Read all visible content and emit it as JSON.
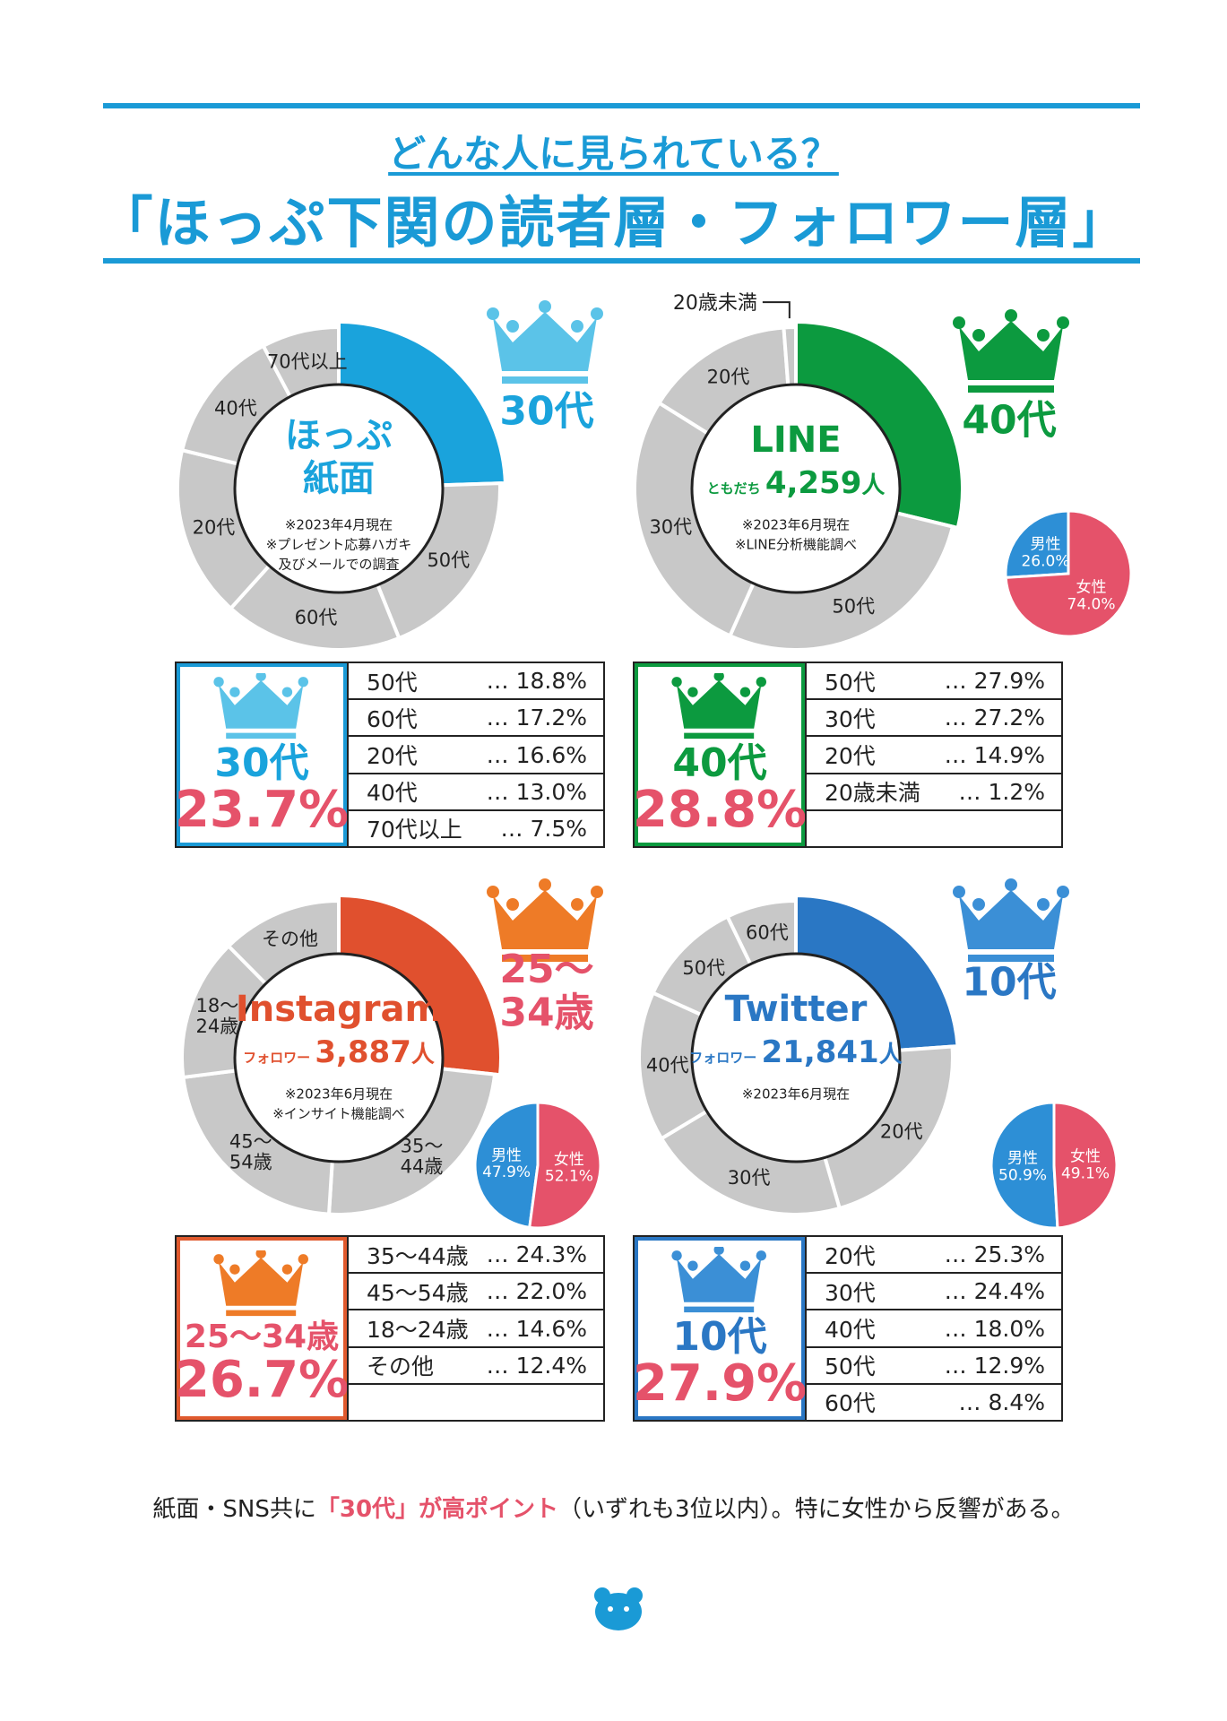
{
  "header": {
    "subtitle": "どんな人に見られている？",
    "title": "「ほっぷ下関の読者層・フォロワー層」"
  },
  "colors": {
    "accent": "#1a9ad6",
    "grey": "#c8c8c8",
    "female": "#e5526a",
    "male": "#2d8fd6",
    "highlight_red": "#e5526a"
  },
  "panels": [
    {
      "id": "paper",
      "center_title": "ほっぷ",
      "center_title2": "紙面",
      "center_prefix": "",
      "center_number": "",
      "center_unit": "",
      "notes": [
        "※2023年4月現在",
        "※プレゼント応募ハガキ",
        "及びメールでの調査"
      ],
      "crown_label": "30代",
      "crown_color": "#5bc3e8",
      "table_border": "#1a9ad6",
      "rank_label": "30代",
      "rank_pct": "23.7%",
      "table_rows": [
        {
          "label": "50代",
          "value": "… 18.8%"
        },
        {
          "label": "60代",
          "value": "… 17.2%"
        },
        {
          "label": "20代",
          "value": "… 16.6%"
        },
        {
          "label": "40代",
          "value": "… 13.0%"
        },
        {
          "label": "70代以上",
          "value": "… 7.5%"
        }
      ]
    },
    {
      "id": "line",
      "center_title": "LINE",
      "center_title2": "",
      "center_prefix": "ともだち",
      "center_number": "4,259",
      "center_unit": "人",
      "notes": [
        "※2023年6月現在",
        "※LINE分析機能調べ"
      ],
      "crown_label": "40代",
      "crown_color": "#0c9a3f",
      "table_border": "#0c9a3f",
      "rank_label": "40代",
      "rank_pct": "28.8%",
      "table_rows": [
        {
          "label": "50代",
          "value": "… 27.9%"
        },
        {
          "label": "30代",
          "value": "… 27.2%"
        },
        {
          "label": "20代",
          "value": "… 14.9%"
        },
        {
          "label": "20歳未満",
          "value": "… 1.2%"
        },
        {
          "label": "",
          "value": ""
        }
      ]
    },
    {
      "id": "instagram",
      "center_title": "Instagram",
      "center_title2": "",
      "center_prefix": "フォロワー",
      "center_number": "3,887",
      "center_unit": "人",
      "notes": [
        "※2023年6月現在",
        "※インサイト機能調べ"
      ],
      "crown_label": "25～34歳",
      "crown_color": "#ee7b27",
      "table_border": "#e05a2e",
      "rank_label": "25～34歳",
      "rank_pct": "26.7%",
      "table_rows": [
        {
          "label": "35～44歳",
          "value": "… 24.3%"
        },
        {
          "label": "45～54歳",
          "value": "… 22.0%"
        },
        {
          "label": "18～24歳",
          "value": "… 14.6%"
        },
        {
          "label": "その他",
          "value": "… 12.4%"
        },
        {
          "label": "",
          "value": ""
        }
      ]
    },
    {
      "id": "twitter",
      "center_title": "Twitter",
      "center_title2": "",
      "center_prefix": "フォロワー",
      "center_number": "21,841",
      "center_unit": "人",
      "notes": [
        "※2023年6月現在"
      ],
      "crown_label": "10代",
      "crown_color": "#3b8fd6",
      "table_border": "#2a77c4",
      "rank_label": "10代",
      "rank_pct": "27.9%",
      "table_rows": [
        {
          "label": "20代",
          "value": "… 25.3%"
        },
        {
          "label": "30代",
          "value": "… 24.4%"
        },
        {
          "label": "40代",
          "value": "… 18.0%"
        },
        {
          "label": "50代",
          "value": "… 12.9%"
        },
        {
          "label": "60代",
          "value": "… 8.4%"
        }
      ]
    }
  ],
  "chart_data": [
    {
      "type": "pie",
      "title": "ほっぷ 紙面",
      "categories": [
        "30代",
        "50代",
        "60代",
        "20代",
        "40代",
        "70代以上"
      ],
      "values": [
        23.7,
        18.8,
        17.2,
        16.6,
        13.0,
        7.5
      ],
      "slice_labels": [
        "",
        "50代",
        "60代",
        "20代",
        "40代",
        "70代以上"
      ],
      "highlight_color": "#1aa3dc"
    },
    {
      "type": "pie",
      "title": "LINE",
      "categories": [
        "40代",
        "50代",
        "30代",
        "20代",
        "20歳未満"
      ],
      "values": [
        28.8,
        27.9,
        27.2,
        14.9,
        1.2
      ],
      "slice_labels": [
        "",
        "50代",
        "30代",
        "20代",
        "20歳未満"
      ],
      "highlight_color": "#0c9a3f"
    },
    {
      "type": "pie",
      "title": "LINE 男性/女性",
      "categories": [
        "男性",
        "女性"
      ],
      "values": [
        26.0,
        74.0
      ],
      "slice_labels": [
        "男性\n26.0%",
        "女性\n74.0%"
      ]
    },
    {
      "type": "pie",
      "title": "Instagram",
      "categories": [
        "25～34歳",
        "35～44歳",
        "45～54歳",
        "18～24歳",
        "その他"
      ],
      "values": [
        26.7,
        24.3,
        22.0,
        14.6,
        12.4
      ],
      "slice_labels": [
        "",
        "35～\n44歳",
        "45～\n54歳",
        "18～\n24歳",
        "その他"
      ],
      "highlight_color": "#e0502e"
    },
    {
      "type": "pie",
      "title": "Instagram 男性/女性",
      "categories": [
        "男性",
        "女性"
      ],
      "values": [
        47.9,
        52.1
      ],
      "slice_labels": [
        "男性\n47.9%",
        "女性\n52.1%"
      ]
    },
    {
      "type": "pie",
      "title": "Twitter",
      "categories": [
        "10代",
        "20代",
        "30代",
        "40代",
        "50代",
        "60代"
      ],
      "values": [
        27.9,
        25.3,
        24.4,
        18.0,
        12.9,
        8.4
      ],
      "slice_labels": [
        "",
        "20代",
        "30代",
        "40代",
        "50代",
        "60代"
      ],
      "highlight_color": "#2a77c4"
    },
    {
      "type": "pie",
      "title": "Twitter 男性/女性",
      "categories": [
        "男性",
        "女性"
      ],
      "values": [
        50.9,
        49.1
      ],
      "slice_labels": [
        "男性\n50.9%",
        "女性\n49.1%"
      ]
    }
  ],
  "footer": {
    "text1": "紙面・SNS共に",
    "highlight": "「30代」が高ポイント",
    "text2": "（いずれも3位以内）。特に女性から反響がある。"
  }
}
